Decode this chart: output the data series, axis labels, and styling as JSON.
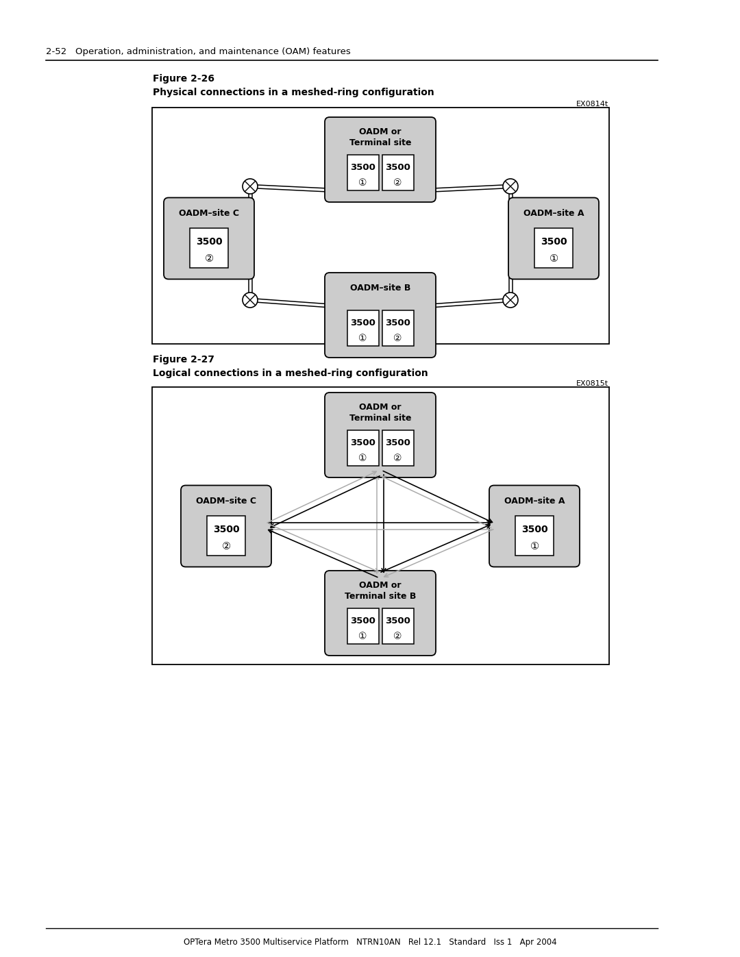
{
  "page_header": "2-52   Operation, administration, and maintenance (OAM) features",
  "fig1_label": "Figure 2-26",
  "fig1_caption": "Physical connections in a meshed-ring configuration",
  "fig1_code": "EX0814t",
  "fig2_label": "Figure 2-27",
  "fig2_caption": "Logical connections in a meshed-ring configuration",
  "fig2_code": "EX0815t",
  "footer": "OPTera Metro 3500 Multiservice Platform   NTRN10AN   Rel 12.1   Standard   Iss 1   Apr 2004",
  "bg_color": "#ffffff",
  "node_bg": "#c8c8c8",
  "inner_bg": "#ffffff",
  "line_color": "#000000"
}
